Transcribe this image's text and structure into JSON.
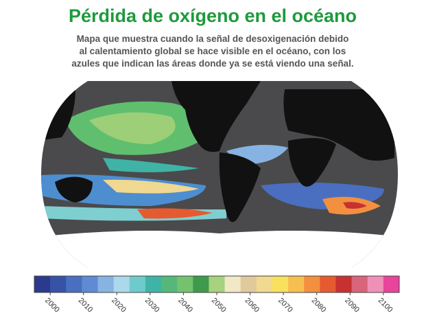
{
  "header": {
    "title": "Pérdida de oxígeno en el océano",
    "subtitle": [
      "Mapa que muestra cuando la señal de desoxigenación debido",
      "al calentamiento global se hace visible en el océano, con los",
      "azules que indican las áreas donde ya se está viendo una señal."
    ]
  },
  "legend": {
    "ticks": [
      2000,
      2010,
      2020,
      2030,
      2040,
      2050,
      2060,
      2070,
      2080,
      2090,
      2100
    ],
    "colors": [
      "#2c3a8e",
      "#3653a8",
      "#4a6fc0",
      "#5e8bd2",
      "#86b3e2",
      "#abd8ea",
      "#6fcbcb",
      "#3fb4a6",
      "#55b87a",
      "#74c26e",
      "#3e9a4c",
      "#a7d27f",
      "#f1e8c6",
      "#e2c99c",
      "#f1d98f",
      "#f8e15c",
      "#f7bf4f",
      "#f29040",
      "#e65a30",
      "#c73131",
      "#d8657a",
      "#f090b8",
      "#e8449c"
    ]
  }
}
